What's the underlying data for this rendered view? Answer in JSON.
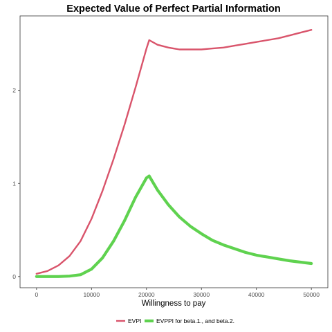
{
  "chart_data": {
    "type": "line",
    "title": "Expected Value of Perfect Partial Information",
    "xlabel": "Willingness to pay",
    "ylabel": "",
    "xlim": [
      -3000,
      53000
    ],
    "ylim": [
      -0.12,
      2.8
    ],
    "xticks": [
      0,
      10000,
      20000,
      30000,
      40000,
      50000
    ],
    "xtick_labels": [
      "0",
      "10000",
      "20000",
      "30000",
      "40000",
      "50000"
    ],
    "yticks": [
      0,
      1,
      2
    ],
    "ytick_labels": [
      "0",
      "1",
      "2"
    ],
    "grid": false,
    "legend_position": "bottom",
    "series": [
      {
        "name": "EVPI",
        "color": "#d9546b",
        "x": [
          0,
          2000,
          4000,
          6000,
          8000,
          10000,
          12000,
          14000,
          16000,
          18000,
          20000,
          20500,
          22000,
          24000,
          26000,
          28000,
          30000,
          32000,
          34000,
          36000,
          38000,
          40000,
          42000,
          44000,
          46000,
          48000,
          50000
        ],
        "values": [
          0.03,
          0.06,
          0.12,
          0.22,
          0.38,
          0.62,
          0.92,
          1.26,
          1.63,
          2.03,
          2.45,
          2.54,
          2.49,
          2.46,
          2.44,
          2.44,
          2.44,
          2.45,
          2.46,
          2.48,
          2.5,
          2.52,
          2.54,
          2.56,
          2.59,
          2.62,
          2.65
        ]
      },
      {
        "name": "EVPPI for beta.1., and beta.2.",
        "color": "#5fd24f",
        "x": [
          0,
          2000,
          4000,
          6000,
          8000,
          10000,
          12000,
          14000,
          16000,
          18000,
          20000,
          20500,
          22000,
          24000,
          26000,
          28000,
          30000,
          32000,
          34000,
          36000,
          38000,
          40000,
          42000,
          44000,
          46000,
          48000,
          50000
        ],
        "values": [
          0.0,
          0.0,
          0.0,
          0.005,
          0.02,
          0.08,
          0.2,
          0.38,
          0.6,
          0.85,
          1.06,
          1.08,
          0.93,
          0.77,
          0.64,
          0.54,
          0.46,
          0.39,
          0.34,
          0.3,
          0.26,
          0.23,
          0.21,
          0.19,
          0.17,
          0.155,
          0.14
        ]
      }
    ]
  }
}
